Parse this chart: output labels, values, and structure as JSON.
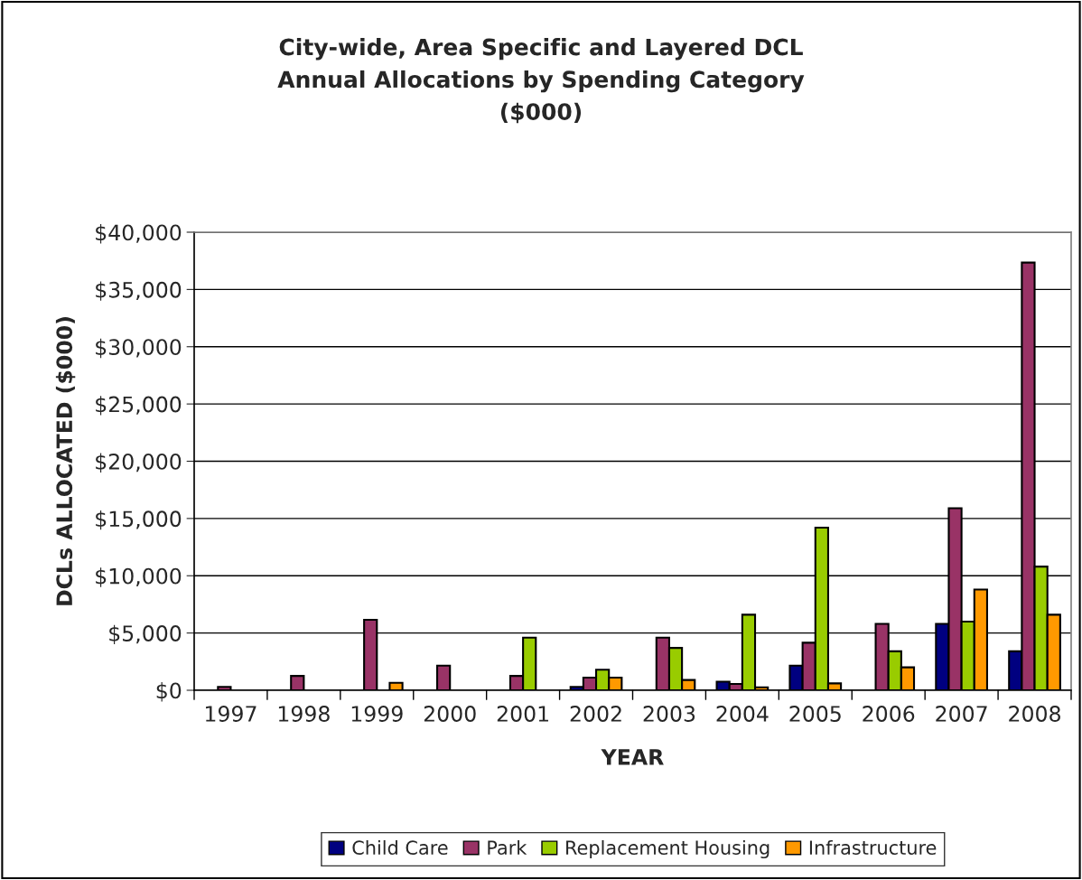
{
  "chart_data": {
    "type": "bar",
    "title": "City-wide, Area Specific and Layered DCL\nAnnual Allocations by Spending Category\n($000)",
    "xlabel": "YEAR",
    "ylabel": "DCLs ALLOCATED ($000)",
    "categories": [
      "1997",
      "1998",
      "1999",
      "2000",
      "2001",
      "2002",
      "2003",
      "2004",
      "2005",
      "2006",
      "2007",
      "2008"
    ],
    "series": [
      {
        "name": "Child Care",
        "color": "#000080",
        "values": [
          null,
          null,
          null,
          null,
          null,
          300,
          null,
          750,
          2150,
          null,
          5800,
          3400
        ]
      },
      {
        "name": "Park",
        "color": "#993366",
        "values": [
          300,
          1250,
          6150,
          2150,
          1250,
          1100,
          4600,
          550,
          4150,
          5800,
          15900,
          37350
        ]
      },
      {
        "name": "Replacement Housing",
        "color": "#99cc00",
        "values": [
          null,
          null,
          null,
          null,
          4600,
          1800,
          3700,
          6600,
          14200,
          3400,
          6000,
          10800
        ]
      },
      {
        "name": "Infrastructure",
        "color": "#ff9900",
        "values": [
          null,
          null,
          650,
          null,
          null,
          1100,
          900,
          250,
          600,
          2000,
          8800,
          6600
        ]
      }
    ],
    "ylim": [
      0,
      40000
    ],
    "yticks": [
      {
        "value": 0,
        "label": "$0"
      },
      {
        "value": 5000,
        "label": "$5,000"
      },
      {
        "value": 10000,
        "label": "$10,000"
      },
      {
        "value": 15000,
        "label": "$15,000"
      },
      {
        "value": 20000,
        "label": "$20,000"
      },
      {
        "value": 25000,
        "label": "$25,000"
      },
      {
        "value": 30000,
        "label": "$30,000"
      },
      {
        "value": 35000,
        "label": "$35,000"
      },
      {
        "value": 40000,
        "label": "$40,000"
      }
    ],
    "grid": "y",
    "legend": "bottom"
  }
}
